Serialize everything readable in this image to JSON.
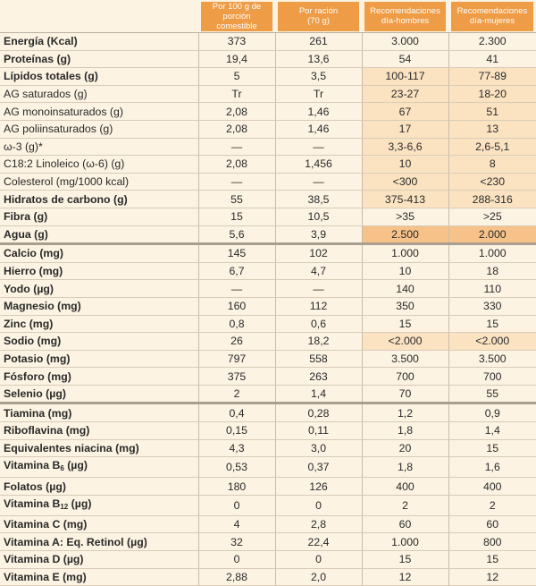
{
  "headers": {
    "col1": [
      "Por 100 g de",
      "porción comestible"
    ],
    "col2": [
      "Por ración",
      "(70 g)"
    ],
    "col3": [
      "Recomendaciones",
      "día-hombres"
    ],
    "col4": [
      "Recomendaciones",
      "día-mujeres"
    ]
  },
  "rows": [
    {
      "label": "Energía (Kcal)",
      "v1": "373",
      "v2": "261",
      "v3": "3.000",
      "v4": "2.300",
      "bold": true,
      "rec": "none",
      "indent": 0,
      "sep": false
    },
    {
      "label": "Proteínas (g)",
      "v1": "19,4",
      "v2": "13,6",
      "v3": "54",
      "v4": "41",
      "bold": true,
      "rec": "none",
      "indent": 0,
      "sep": false
    },
    {
      "label": "Lípidos totales (g)",
      "v1": "5",
      "v2": "3,5",
      "v3": "100-117",
      "v4": "77-89",
      "bold": true,
      "rec": "light",
      "indent": 0,
      "sep": false
    },
    {
      "label": "AG saturados (g)",
      "v1": "Tr",
      "v2": "Tr",
      "v3": "23-27",
      "v4": "18-20",
      "bold": false,
      "rec": "light",
      "indent": 0,
      "sep": false
    },
    {
      "label": "AG monoinsaturados (g)",
      "v1": "2,08",
      "v2": "1,46",
      "v3": "67",
      "v4": "51",
      "bold": false,
      "rec": "light",
      "indent": 0,
      "sep": false
    },
    {
      "label": "AG poliinsaturados (g)",
      "v1": "2,08",
      "v2": "1,46",
      "v3": "17",
      "v4": "13",
      "bold": false,
      "rec": "light",
      "indent": 0,
      "sep": false
    },
    {
      "label": "ω-3 (g)*",
      "v1": "—",
      "v2": "—",
      "v3": "3,3-6,6",
      "v4": "2,6-5,1",
      "bold": false,
      "rec": "light",
      "indent": 1,
      "sep": false
    },
    {
      "label": "C18:2 Linoleico (ω-6) (g)",
      "v1": "2,08",
      "v2": "1,456",
      "v3": "10",
      "v4": "8",
      "bold": false,
      "rec": "light",
      "indent": 1,
      "sep": false
    },
    {
      "label": "Colesterol (mg/1000 kcal)",
      "v1": "—",
      "v2": "—",
      "v3": "<300",
      "v4": "<230",
      "bold": false,
      "rec": "light",
      "indent": 0,
      "sep": false
    },
    {
      "label": "Hidratos de carbono (g)",
      "v1": "55",
      "v2": "38,5",
      "v3": "375-413",
      "v4": "288-316",
      "bold": true,
      "rec": "light",
      "indent": 0,
      "sep": false
    },
    {
      "label": "Fibra (g)",
      "v1": "15",
      "v2": "10,5",
      "v3": ">35",
      "v4": ">25",
      "bold": true,
      "rec": "none",
      "indent": 0,
      "sep": false
    },
    {
      "label": "Agua (g)",
      "v1": "5,6",
      "v2": "3,9",
      "v3": "2.500",
      "v4": "2.000",
      "bold": true,
      "rec": "dark",
      "indent": 0,
      "sep": false
    },
    {
      "label": "Calcio (mg)",
      "v1": "145",
      "v2": "102",
      "v3": "1.000",
      "v4": "1.000",
      "bold": true,
      "rec": "none",
      "indent": 0,
      "sep": true
    },
    {
      "label": "Hierro (mg)",
      "v1": "6,7",
      "v2": "4,7",
      "v3": "10",
      "v4": "18",
      "bold": true,
      "rec": "none",
      "indent": 0,
      "sep": false
    },
    {
      "label": "Yodo (µg)",
      "v1": "—",
      "v2": "—",
      "v3": "140",
      "v4": "110",
      "bold": true,
      "rec": "none",
      "indent": 0,
      "sep": false
    },
    {
      "label": "Magnesio (mg)",
      "v1": "160",
      "v2": "112",
      "v3": "350",
      "v4": "330",
      "bold": true,
      "rec": "none",
      "indent": 0,
      "sep": false
    },
    {
      "label": "Zinc (mg)",
      "v1": "0,8",
      "v2": "0,6",
      "v3": "15",
      "v4": "15",
      "bold": true,
      "rec": "none",
      "indent": 0,
      "sep": false
    },
    {
      "label": "Sodio (mg)",
      "v1": "26",
      "v2": "18,2",
      "v3": "<2.000",
      "v4": "<2.000",
      "bold": true,
      "rec": "light",
      "indent": 0,
      "sep": false
    },
    {
      "label": "Potasio (mg)",
      "v1": "797",
      "v2": "558",
      "v3": "3.500",
      "v4": "3.500",
      "bold": true,
      "rec": "none",
      "indent": 0,
      "sep": false
    },
    {
      "label": "Fósforo (mg)",
      "v1": "375",
      "v2": "263",
      "v3": "700",
      "v4": "700",
      "bold": true,
      "rec": "none",
      "indent": 0,
      "sep": false
    },
    {
      "label": "Selenio (µg)",
      "v1": "2",
      "v2": "1,4",
      "v3": "70",
      "v4": "55",
      "bold": true,
      "rec": "none",
      "indent": 0,
      "sep": false
    },
    {
      "label": "Tiamina (mg)",
      "v1": "0,4",
      "v2": "0,28",
      "v3": "1,2",
      "v4": "0,9",
      "bold": true,
      "rec": "none",
      "indent": 0,
      "sep": true
    },
    {
      "label": "Riboflavina (mg)",
      "v1": "0,15",
      "v2": "0,11",
      "v3": "1,8",
      "v4": "1,4",
      "bold": true,
      "rec": "none",
      "indent": 0,
      "sep": false
    },
    {
      "label": "Equivalentes niacina (mg)",
      "v1": "4,3",
      "v2": "3,0",
      "v3": "20",
      "v4": "15",
      "bold": true,
      "rec": "none",
      "indent": 0,
      "sep": false
    },
    {
      "label": "Vitamina B",
      "sub": "6",
      "suffix": " (µg)",
      "v1": "0,53",
      "v2": "0,37",
      "v3": "1,8",
      "v4": "1,6",
      "bold": true,
      "rec": "none",
      "indent": 0,
      "sep": false
    },
    {
      "label": "Folatos (µg)",
      "v1": "180",
      "v2": "126",
      "v3": "400",
      "v4": "400",
      "bold": true,
      "rec": "none",
      "indent": 0,
      "sep": false
    },
    {
      "label": "Vitamina B",
      "sub": "12",
      "suffix": " (µg)",
      "v1": "0",
      "v2": "0",
      "v3": "2",
      "v4": "2",
      "bold": true,
      "rec": "none",
      "indent": 0,
      "sep": false
    },
    {
      "label": "Vitamina C (mg)",
      "v1": "4",
      "v2": "2,8",
      "v3": "60",
      "v4": "60",
      "bold": true,
      "rec": "none",
      "indent": 0,
      "sep": false
    },
    {
      "label": "Vitamina A: Eq. Retinol (µg)",
      "v1": "32",
      "v2": "22,4",
      "v3": "1.000",
      "v4": "800",
      "bold": true,
      "rec": "none",
      "indent": 0,
      "sep": false
    },
    {
      "label": "Vitamina D (µg)",
      "v1": "0",
      "v2": "0",
      "v3": "15",
      "v4": "15",
      "bold": true,
      "rec": "none",
      "indent": 0,
      "sep": false
    },
    {
      "label": "Vitamina E (mg)",
      "v1": "2,88",
      "v2": "2,0",
      "v3": "12",
      "v4": "12",
      "bold": true,
      "rec": "none",
      "indent": 0,
      "sep": false
    }
  ],
  "colors": {
    "header_orange": "#ee9c45",
    "background": "#fcf3e2",
    "rec_light": "#fbe3c2",
    "rec_dark": "#f6c28a"
  }
}
